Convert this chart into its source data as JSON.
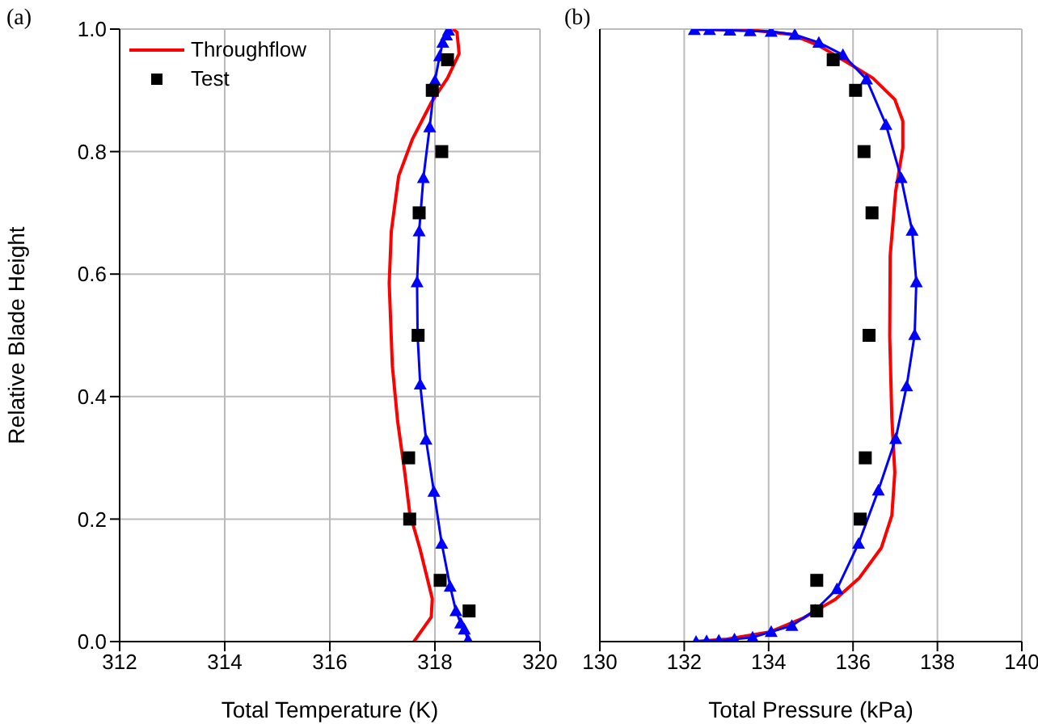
{
  "chart_data": [
    {
      "type": "line",
      "title": "(a)",
      "xlabel": "Total Temperature (K)",
      "ylabel": "Relative Blade Height",
      "xlim": [
        312,
        320
      ],
      "xticks": [
        312,
        314,
        316,
        318,
        320
      ],
      "ylim": [
        0,
        1
      ],
      "yticks": [
        {
          "value": 0,
          "label": "0.0"
        },
        0.2,
        0.4,
        0.6,
        0.8,
        {
          "value": 1,
          "label": "1.0"
        }
      ],
      "grid": true,
      "legend": "top left",
      "series": [
        {
          "name": "Throughflow",
          "color": "#ff0000",
          "marker": "none",
          "x": [
            317.6,
            317.93,
            317.95,
            317.72,
            317.52,
            317.42,
            317.29,
            317.19,
            317.13,
            317.17,
            317.31,
            317.57,
            317.93,
            318.24,
            318.46,
            318.42,
            318.34
          ],
          "values": [
            0,
            0.04,
            0.07,
            0.15,
            0.21,
            0.28,
            0.36,
            0.45,
            0.585,
            0.67,
            0.76,
            0.82,
            0.88,
            0.92,
            0.96,
            0.995,
            1.0
          ]
        },
        {
          "color": "#0000ff",
          "marker": "triangle",
          "x": [
            318.63,
            318.56,
            318.49,
            318.4,
            318.29,
            318.13,
            317.98,
            317.83,
            317.72,
            317.67,
            317.66,
            317.7,
            317.78,
            317.9,
            318.0,
            318.09,
            318.15,
            318.22,
            318.26
          ],
          "values": [
            0.003,
            0.02,
            0.03,
            0.05,
            0.09,
            0.16,
            0.245,
            0.33,
            0.42,
            0.5,
            0.587,
            0.67,
            0.757,
            0.84,
            0.916,
            0.956,
            0.978,
            0.99,
            0.998
          ]
        },
        {
          "name": "Test",
          "type": "scatter",
          "color": "#000000",
          "marker": "square",
          "x": [
            318.24,
            317.95,
            318.13,
            317.7,
            317.68,
            317.5,
            317.52,
            318.1,
            318.65
          ],
          "values": [
            0.95,
            0.9,
            0.8,
            0.7,
            0.5,
            0.3,
            0.2,
            0.1,
            0.05
          ]
        }
      ]
    },
    {
      "type": "line",
      "title": "(b)",
      "xlabel": "Total Pressure (kPa)",
      "xlim": [
        130,
        140
      ],
      "xticks": [
        130,
        132,
        134,
        136,
        138,
        140
      ],
      "ylim": [
        0,
        1
      ],
      "yticks": [
        0,
        0.2,
        0.4,
        0.6,
        0.8,
        1
      ],
      "grid": true,
      "tick_labels": "x",
      "series": [
        {
          "color": "#ff0000",
          "marker": "none",
          "x": [
            132.24,
            133.01,
            134.04,
            134.81,
            135.58,
            136.15,
            136.67,
            136.92,
            136.99,
            136.92,
            136.87,
            136.88,
            137.01,
            137.18,
            137.18,
            136.99,
            136.47,
            135.83,
            135.19,
            134.55,
            133.65,
            132.24
          ],
          "values": [
            0,
            0.004,
            0.016,
            0.038,
            0.069,
            0.104,
            0.153,
            0.206,
            0.276,
            0.365,
            0.497,
            0.63,
            0.735,
            0.806,
            0.85,
            0.885,
            0.92,
            0.947,
            0.973,
            0.991,
            0.998,
            1.0
          ]
        },
        {
          "color": "#0000ff",
          "marker": "triangle",
          "x": [
            132.28,
            132.53,
            132.82,
            133.19,
            133.62,
            134.06,
            134.55,
            135.1,
            135.62,
            136.13,
            136.6,
            137.01,
            137.27,
            137.46,
            137.5,
            137.4,
            137.14,
            136.78,
            136.32,
            135.76,
            135.19,
            134.62,
            134.06,
            133.56,
            133.08,
            132.6,
            132.24
          ],
          "values": [
            0,
            0.001,
            0.002,
            0.004,
            0.007,
            0.016,
            0.026,
            0.051,
            0.086,
            0.16,
            0.247,
            0.331,
            0.417,
            0.501,
            0.587,
            0.671,
            0.757,
            0.844,
            0.918,
            0.958,
            0.978,
            0.991,
            0.996,
            0.997,
            0.998,
            0.999,
            0.999
          ]
        },
        {
          "type": "scatter",
          "color": "#000000",
          "marker": "square",
          "x": [
            135.53,
            136.06,
            136.26,
            136.45,
            136.38,
            136.29,
            136.17,
            135.14,
            135.14
          ],
          "values": [
            0.95,
            0.9,
            0.8,
            0.7,
            0.5,
            0.3,
            0.2,
            0.1,
            0.05
          ]
        }
      ]
    }
  ]
}
